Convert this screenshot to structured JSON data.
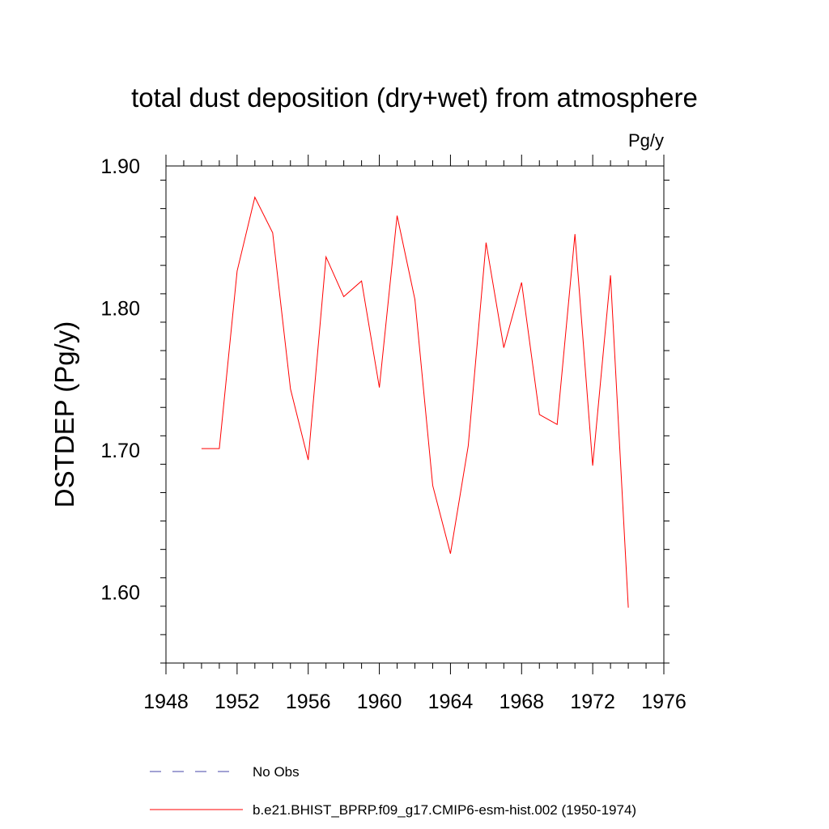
{
  "chart_data": {
    "type": "line",
    "title": "total dust deposition (dry+wet) from atmosphere",
    "units": "Pg/y",
    "xlabel": "",
    "ylabel": "DSTDEP  (Pg/y)",
    "xlim": [
      1948,
      1976
    ],
    "ylim": [
      1.55,
      1.9
    ],
    "xticks": [
      1948,
      1952,
      1956,
      1960,
      1964,
      1968,
      1972,
      1976
    ],
    "yticks": [
      1.6,
      1.7,
      1.8,
      1.9
    ],
    "ytick_labels": [
      "1.60",
      "1.70",
      "1.80",
      "1.90"
    ],
    "grid": false,
    "series": [
      {
        "name": "b.e21.BHIST_BPRP.f09_g17.CMIP6-esm-hist.002 (1950-1974)",
        "color": "#ff0000",
        "style": "solid",
        "x": [
          1950,
          1951,
          1952,
          1953,
          1954,
          1955,
          1956,
          1957,
          1958,
          1959,
          1960,
          1961,
          1962,
          1963,
          1964,
          1965,
          1966,
          1967,
          1968,
          1969,
          1970,
          1971,
          1972,
          1973,
          1974
        ],
        "y": [
          1.701,
          1.701,
          1.826,
          1.878,
          1.853,
          1.743,
          1.693,
          1.836,
          1.808,
          1.819,
          1.744,
          1.865,
          1.806,
          1.675,
          1.627,
          1.703,
          1.846,
          1.772,
          1.818,
          1.725,
          1.718,
          1.852,
          1.689,
          1.823,
          1.589
        ]
      }
    ],
    "legend": [
      {
        "label": "No Obs",
        "color": "#4444aa",
        "style": "dashed"
      },
      {
        "label": "b.e21.BHIST_BPRP.f09_g17.CMIP6-esm-hist.002 (1950-1974)",
        "color": "#ff0000",
        "style": "solid"
      }
    ],
    "legend_position": "bottom"
  }
}
